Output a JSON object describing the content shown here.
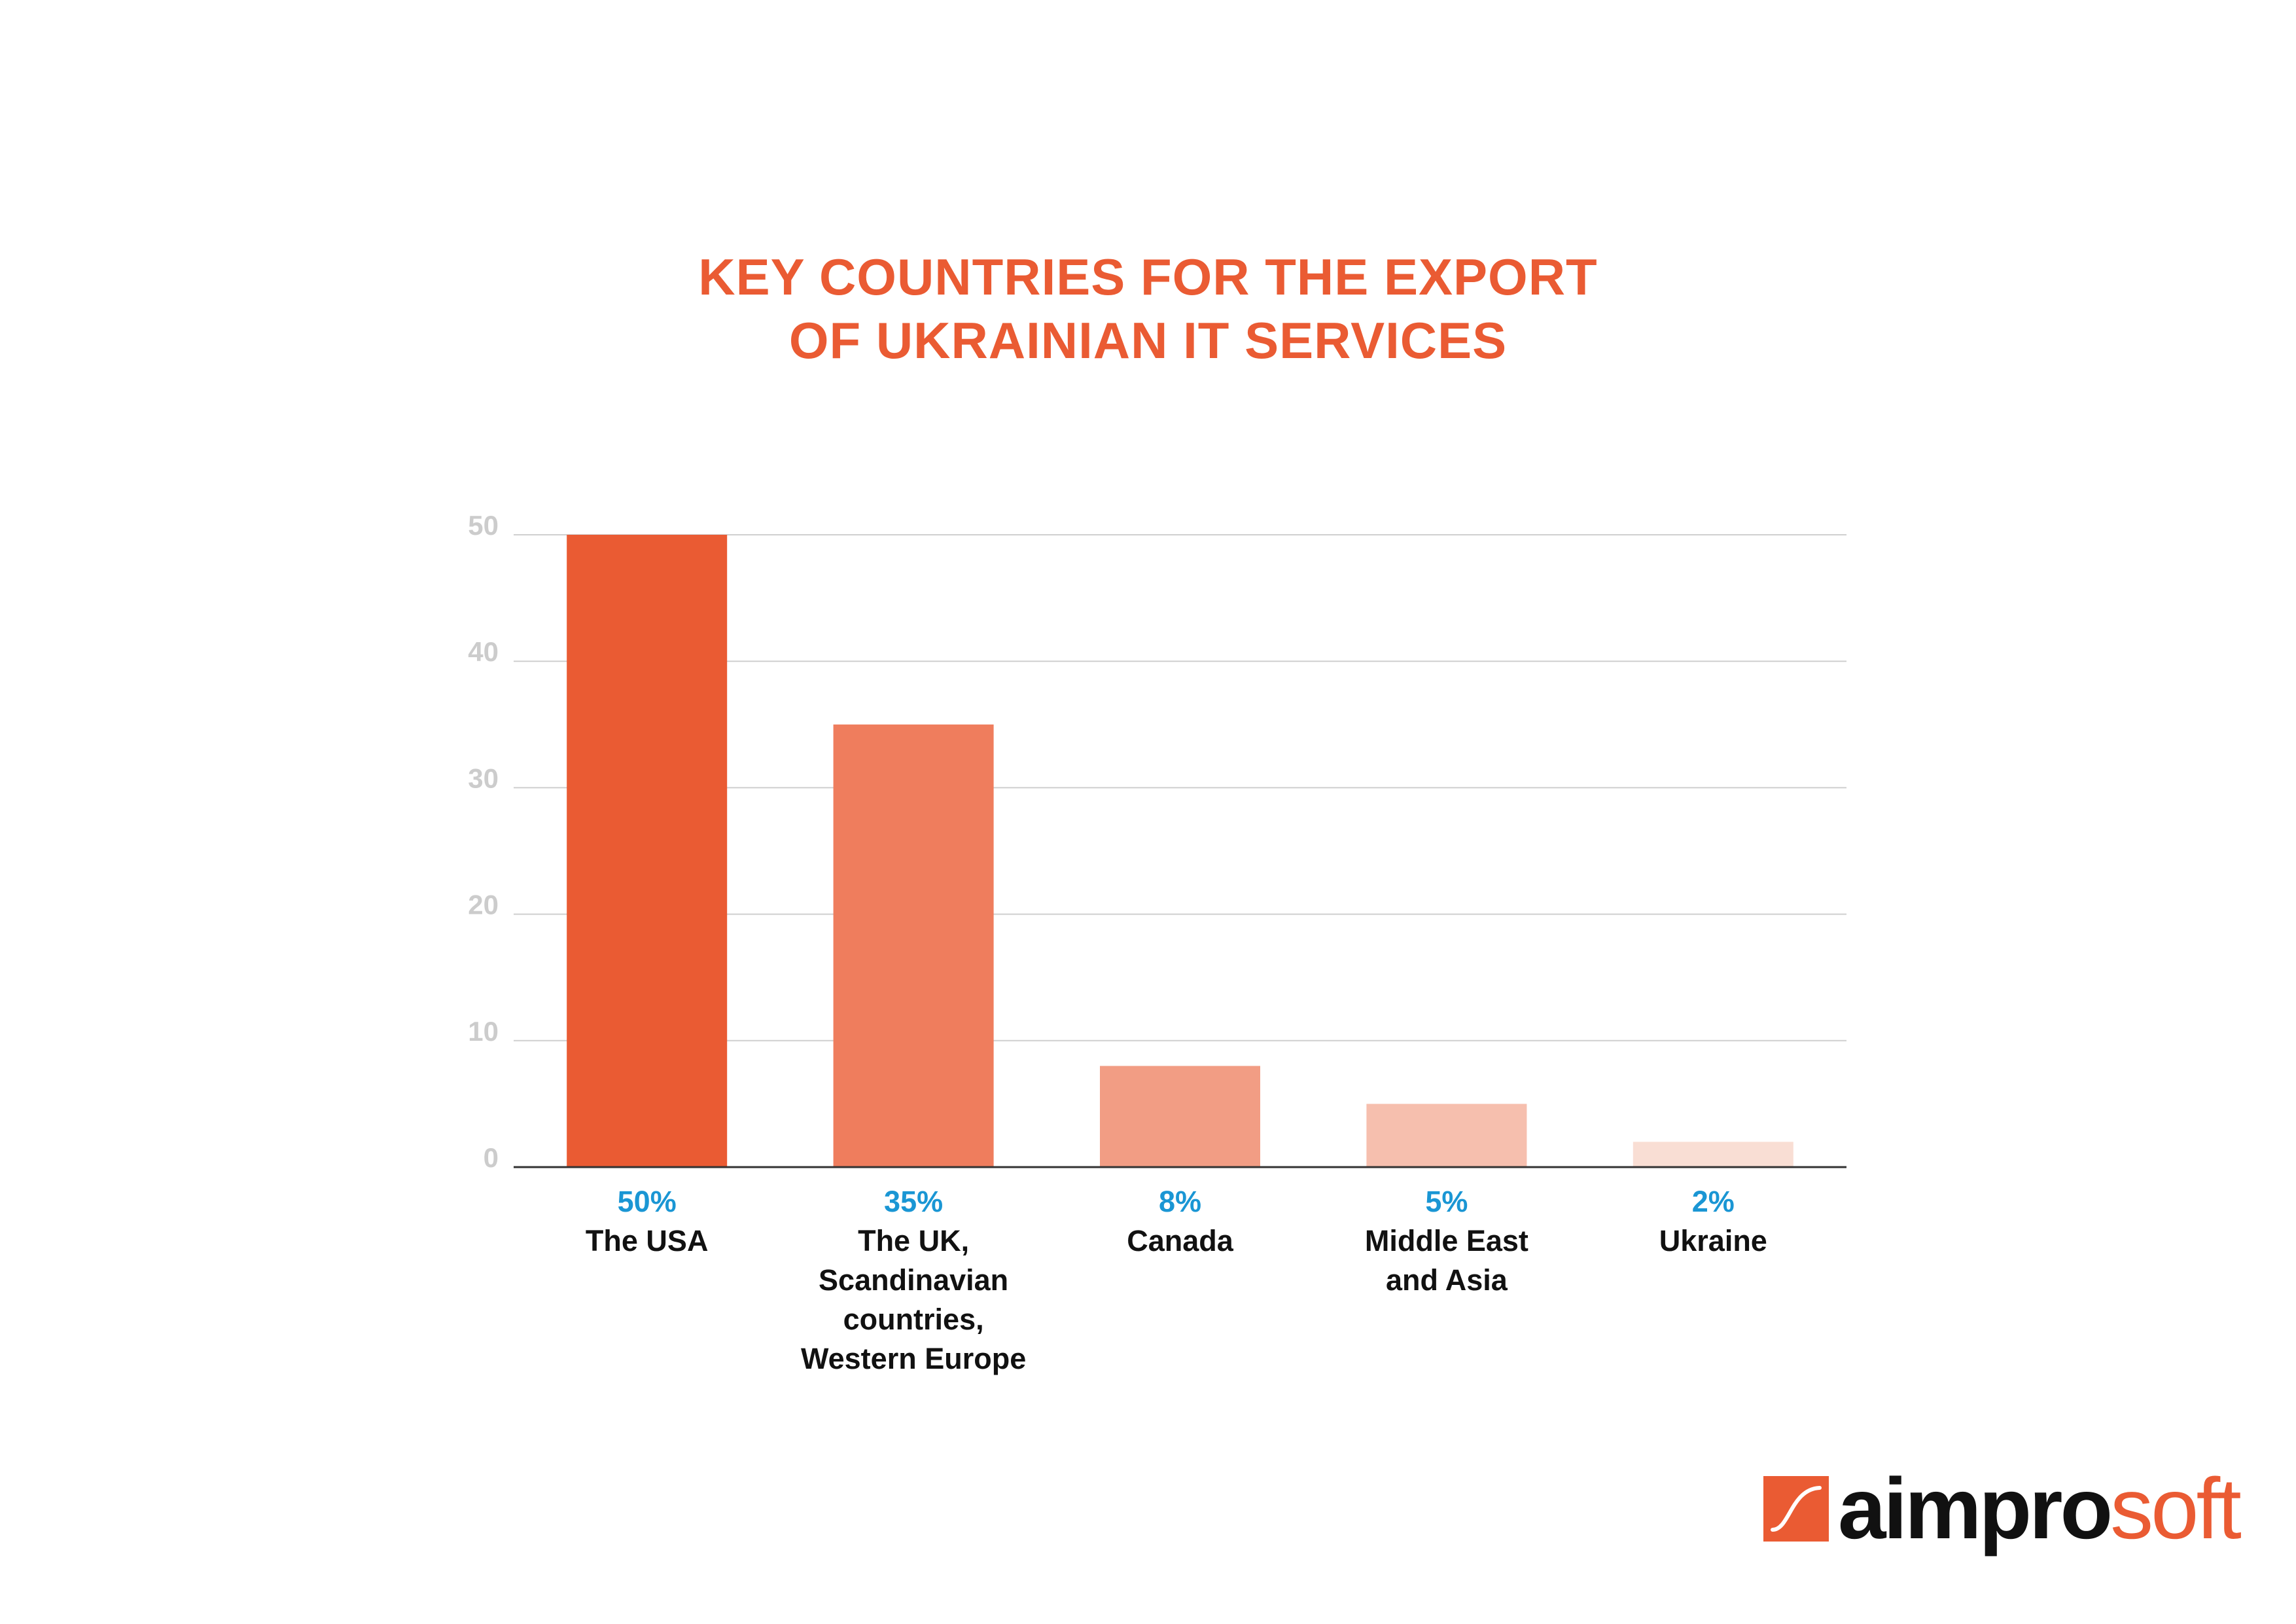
{
  "chart_data": {
    "type": "bar",
    "title_lines": [
      "KEY COUNTRIES FOR THE EXPORT",
      "OF UKRAINIAN IT SERVICES"
    ],
    "categories": [
      {
        "name_lines": [
          "The USA"
        ],
        "value": 50,
        "value_label": "50%",
        "color": "#ea5b33"
      },
      {
        "name_lines": [
          "The UK,",
          "Scandinavian",
          "countries,",
          "Western Europe"
        ],
        "value": 35,
        "value_label": "35%",
        "color": "#ef7d5d"
      },
      {
        "name_lines": [
          "Canada"
        ],
        "value": 8,
        "value_label": "8%",
        "color": "#f29d84"
      },
      {
        "name_lines": [
          "Middle East",
          "and Asia"
        ],
        "value": 5,
        "value_label": "5%",
        "color": "#f6bfae"
      },
      {
        "name_lines": [
          "Ukraine"
        ],
        "value": 2,
        "value_label": "2%",
        "color": "#f9ded4"
      }
    ],
    "ylim": [
      0,
      50
    ],
    "yticks": [
      "0",
      "10",
      "20",
      "30",
      "40",
      "50"
    ],
    "grid": true,
    "value_label_color": "#1a96d4",
    "title_color": "#ea5b33"
  },
  "logo": {
    "text_dark": "aimpro",
    "text_accent": "soft",
    "icon": "aimprosoft-logo-icon"
  }
}
